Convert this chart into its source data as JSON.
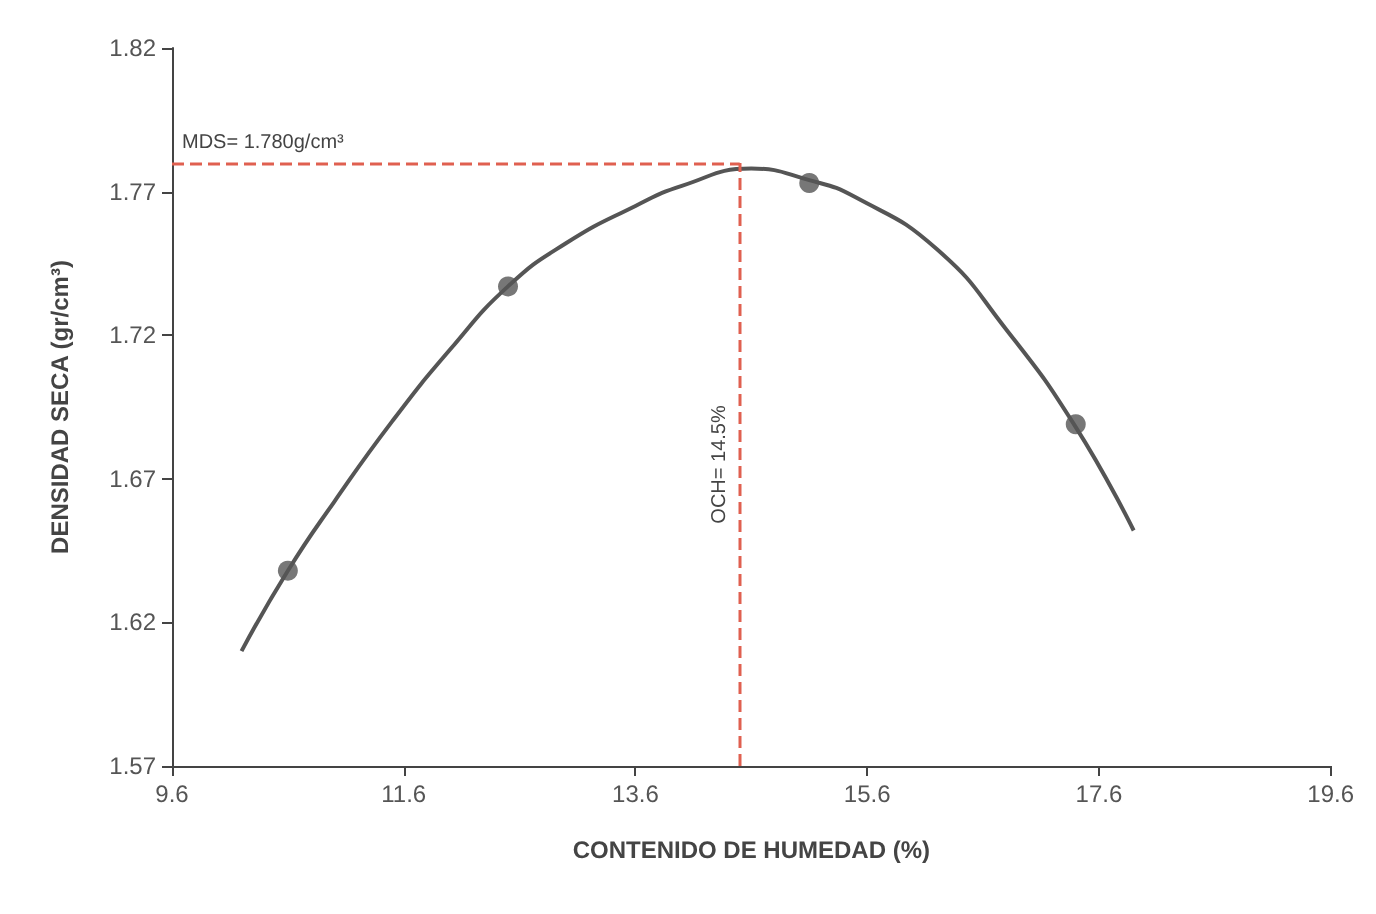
{
  "chart_data": {
    "type": "scatter",
    "xlabel": "CONTENIDO DE HUMEDAD (%)",
    "ylabel": "DENSIDAD SECA (gr/cm³)",
    "xlim": [
      9.6,
      19.6
    ],
    "xticks": [
      9.6,
      11.6,
      13.6,
      15.6,
      17.6,
      19.6
    ],
    "ylim": [
      1.57,
      1.82
    ],
    "yticks": [
      1.57,
      1.62,
      1.67,
      1.72,
      1.77,
      1.82
    ],
    "grid": false,
    "marker": "circle",
    "series": [
      {
        "type": "scatter",
        "color": "#555555",
        "x": [
          10.6,
          12.5,
          15.1,
          17.4
        ],
        "values": [
          1.638,
          1.737,
          1.773,
          1.689
        ]
      },
      {
        "type": "line",
        "color": "#555555",
        "marker": "none",
        "line_style": "solid",
        "x": [
          10.2,
          10.6,
          11.0,
          11.5,
          12.0,
          12.5,
          13.0,
          13.6,
          14.0,
          14.6,
          15.1,
          15.5,
          16.2,
          16.8,
          17.4,
          17.9
        ],
        "values": [
          1.61,
          1.638,
          1.662,
          1.69,
          1.715,
          1.737,
          1.752,
          1.765,
          1.772,
          1.778,
          1.774,
          1.768,
          1.75,
          1.722,
          1.688,
          1.652
        ]
      }
    ],
    "ref_lines": [
      {
        "axis": "y",
        "value": 1.78,
        "label": "MDS= 1.780g/cm³",
        "color": "#e06050",
        "line_style": "dashed"
      },
      {
        "axis": "x",
        "value": 14.5,
        "label": "OCH= 14.5%",
        "color": "#e06050",
        "line_style": "dashed"
      }
    ]
  }
}
